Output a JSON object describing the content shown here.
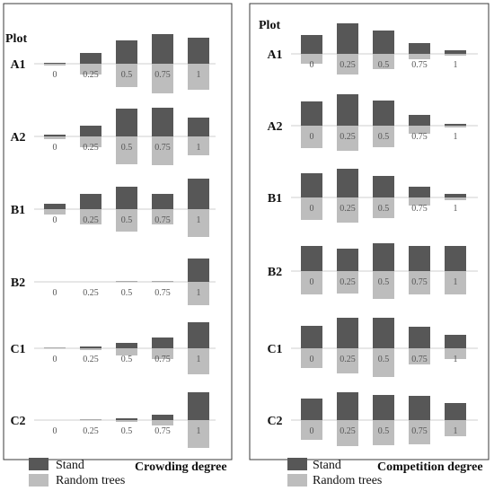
{
  "colors": {
    "stand": "#575757",
    "random": "#bdbdbd",
    "frame": "#3a3a3a",
    "baseline": "#cfcfcf"
  },
  "plot_header": "Plot",
  "plots": [
    "A1",
    "A2",
    "B1",
    "B2",
    "C1",
    "C2"
  ],
  "categories": [
    "0",
    "0.25",
    "0.5",
    "0.75",
    "1"
  ],
  "legend": {
    "stand": "Stand",
    "random": "Random trees"
  },
  "chart_data": [
    {
      "type": "bar",
      "title": "",
      "xlabel": "Crowding degree",
      "ylabel": "",
      "categories": [
        "0",
        "0.25",
        "0.5",
        "0.75",
        "1"
      ],
      "series": [
        {
          "name": "Stand",
          "direction": "up",
          "values": {
            "A1": [
              1,
              12,
              26,
              33,
              29
            ],
            "A2": [
              2,
              12,
              31,
              32,
              21
            ],
            "B1": [
              6,
              17,
              25,
              17,
              34
            ],
            "B2": [
              0,
              0,
              0.5,
              0.5,
              26
            ],
            "C1": [
              0.5,
              2,
              6,
              12,
              29
            ],
            "C2": [
              0,
              0.5,
              2,
              6,
              31
            ]
          }
        },
        {
          "name": "Random trees",
          "direction": "down",
          "values": {
            "A1": [
              2,
              12,
              26,
              33,
              29
            ],
            "A2": [
              3,
              12,
              31,
              32,
              21
            ],
            "B1": [
              6,
              17,
              25,
              17,
              31
            ],
            "B2": [
              0,
              0,
              0.5,
              0.5,
              26
            ],
            "C1": [
              0.5,
              2,
              8,
              12,
              29
            ],
            "C2": [
              0,
              0.5,
              2,
              6,
              31
            ]
          }
        }
      ]
    },
    {
      "type": "bar",
      "title": "",
      "xlabel": "Competition degree",
      "ylabel": "",
      "categories": [
        "0",
        "0.25",
        "0.5",
        "0.75",
        "1"
      ],
      "series": [
        {
          "name": "Stand",
          "direction": "up",
          "values": {
            "A1": [
              21,
              34,
              26,
              12,
              4
            ],
            "A2": [
              27,
              35,
              28,
              12,
              2
            ],
            "B1": [
              27,
              32,
              24,
              12,
              4
            ],
            "B2": [
              28,
              25,
              31,
              28,
              28
            ],
            "C1": [
              25,
              34,
              34,
              24,
              15
            ],
            "C2": [
              24,
              31,
              28,
              27,
              19
            ]
          }
        },
        {
          "name": "Random trees",
          "direction": "down",
          "values": {
            "A1": [
              11,
              23,
              17,
              6,
              2
            ],
            "A2": [
              25,
              28,
              24,
              9,
              2
            ],
            "B1": [
              25,
              28,
              23,
              9,
              3
            ],
            "B2": [
              26,
              25,
              31,
              26,
              26
            ],
            "C1": [
              22,
              28,
              32,
              18,
              12
            ],
            "C2": [
              22,
              29,
              28,
              27,
              18
            ]
          }
        }
      ]
    }
  ]
}
